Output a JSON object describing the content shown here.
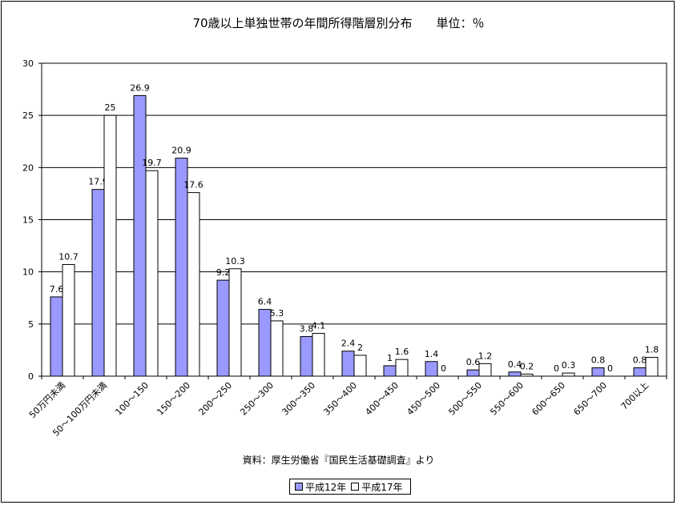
{
  "chart_data": {
    "type": "bar",
    "title": "70歳以上単独世帯の年間所得階層別分布　　単位：％",
    "source": "資料：厚生労働省『国民生活基礎調査』より",
    "categories": [
      "50万円未満",
      "50～100万円未満",
      "100～150",
      "150～200",
      "200～250",
      "250～300",
      "300～350",
      "350～400",
      "400～450",
      "450～500",
      "500～550",
      "550～600",
      "600～650",
      "650～700",
      "700以上"
    ],
    "series": [
      {
        "name": "平成12年",
        "color": "#9999ff",
        "values": [
          7.6,
          17.9,
          26.9,
          20.9,
          9.2,
          6.4,
          3.8,
          2.4,
          1,
          1.4,
          0.6,
          0.4,
          0,
          0.8,
          0.8
        ]
      },
      {
        "name": "平成17年",
        "color": "#ffffff",
        "values": [
          10.7,
          25,
          19.7,
          17.6,
          10.3,
          5.3,
          4.1,
          2,
          1.6,
          0,
          1.2,
          0.2,
          0.3,
          0,
          1.8
        ]
      }
    ],
    "ylim": [
      0,
      30
    ],
    "yticks": [
      0,
      5,
      10,
      15,
      20,
      25,
      30
    ],
    "grid": true,
    "legend_position": "bottom"
  }
}
